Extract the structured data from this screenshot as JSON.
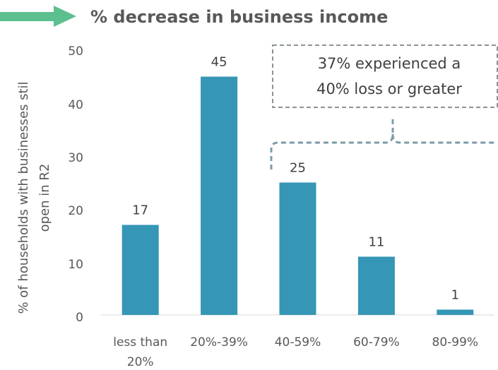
{
  "chart_data": {
    "type": "bar",
    "title": "% decrease in business income",
    "ylabel_lines": [
      "% of households with businesses stil",
      "open in R2"
    ],
    "categories": [
      [
        "less than",
        "20%"
      ],
      [
        "20%-39%"
      ],
      [
        "40-59%"
      ],
      [
        "60-79%"
      ],
      [
        "80-99%"
      ]
    ],
    "values": [
      17,
      45,
      25,
      11,
      1
    ],
    "data_labels": [
      "17",
      "45",
      "25",
      "11",
      "1"
    ],
    "yticks": [
      "0",
      "10",
      "20",
      "30",
      "40",
      "50"
    ],
    "ylim": [
      0,
      50
    ],
    "grid": false,
    "bar_color": "#3596b5",
    "annotation": {
      "lines": [
        "37% experienced a",
        "40% loss or greater"
      ],
      "border_color": "#8b9496",
      "bracket_color": "#7a9ca8"
    },
    "arrow_color": "#5cbf8e"
  }
}
